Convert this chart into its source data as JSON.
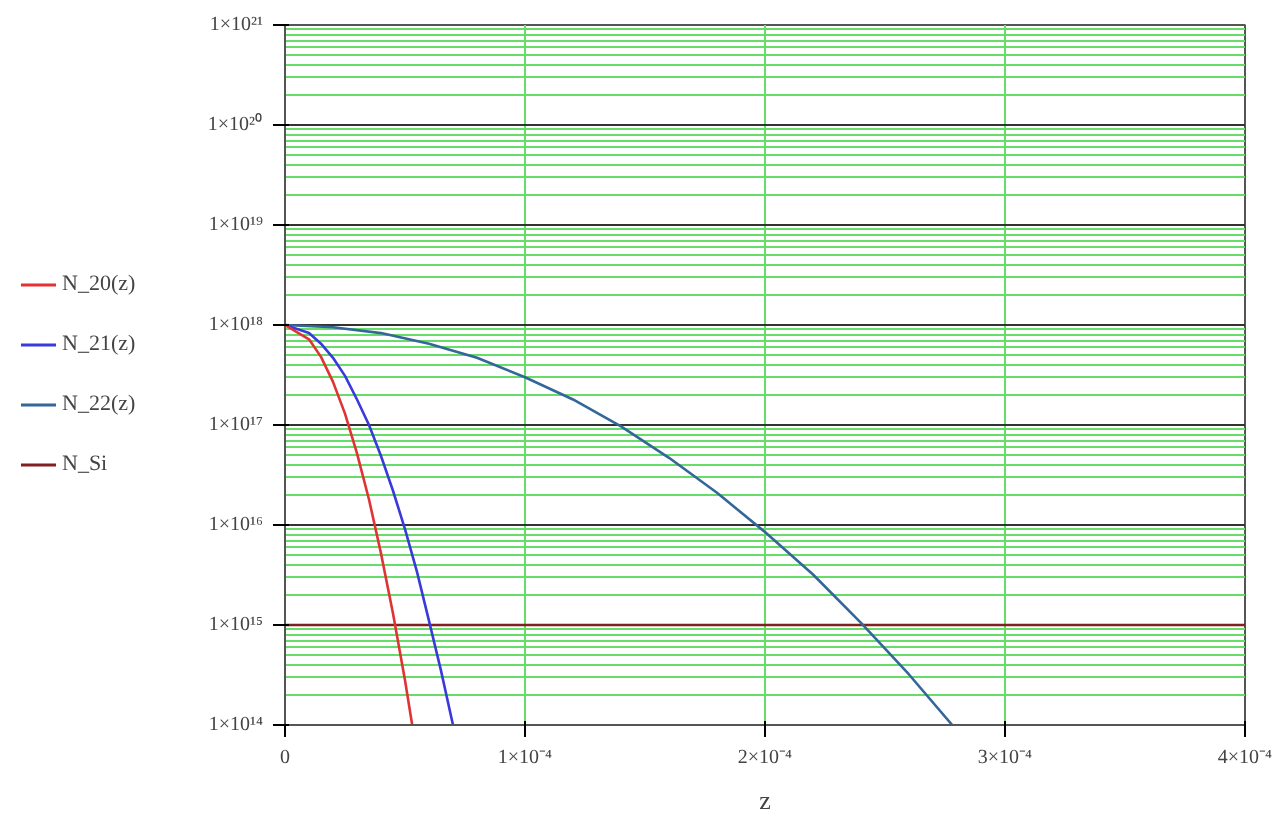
{
  "chart_data": {
    "type": "line",
    "xlabel": "z",
    "log": "y",
    "grid": true,
    "legend": "left",
    "line_style": "solid",
    "xlim": [
      0,
      0.0004
    ],
    "ylim": [
      100000000000000.0,
      1e+21
    ],
    "xticks": [
      0,
      {
        "value": 0.0001,
        "label": "1×10⁻⁴"
      },
      {
        "value": 0.0002,
        "label": "2×10⁻⁴"
      },
      {
        "value": 0.0003,
        "label": "3×10⁻⁴"
      },
      {
        "value": 0.0004,
        "label": "4×10⁻⁴"
      }
    ],
    "yticks": [
      {
        "value": 100000000000000.0,
        "label": "1×10¹⁴"
      },
      {
        "value": 1000000000000000.0,
        "label": "1×10¹⁵"
      },
      {
        "value": 1e+16,
        "label": "1×10¹⁶"
      },
      {
        "value": 1e+17,
        "label": "1×10¹⁷"
      },
      {
        "value": 1e+18,
        "label": "1×10¹⁸"
      },
      {
        "value": 1e+19,
        "label": "1×10¹⁹"
      },
      {
        "value": 1e+20,
        "label": "1×10²⁰"
      },
      {
        "value": 1e+21,
        "label": "1×10²¹"
      }
    ],
    "series": [
      {
        "name": "N_20(z)",
        "color": "#e03333",
        "x": [
          0,
          1e-05,
          1.5e-05,
          2e-05,
          2.5e-05,
          3e-05,
          3.5e-05,
          4e-05,
          4.5e-05,
          5e-05,
          5.3e-05
        ],
        "values": [
          1e+18,
          7.2e+17,
          4.8e+17,
          2.7e+17,
          1.3e+17,
          5.2e+16,
          1.8e+16,
          5200000000000000.0,
          1300000000000000.0,
          280000000000000.0,
          100000000000000.0
        ]
      },
      {
        "name": "N_21(z)",
        "color": "#3a3adc",
        "x": [
          0,
          1e-05,
          1.5e-05,
          2e-05,
          2.5e-05,
          3e-05,
          3.5e-05,
          4e-05,
          4.5e-05,
          5e-05,
          5.5e-05,
          6e-05,
          6.5e-05,
          7e-05
        ],
        "values": [
          1e+18,
          8.3e+17,
          6.5e+17,
          4.7e+17,
          3.1e+17,
          1.8e+17,
          1e+17,
          4.9e+16,
          2.2e+16,
          9100000000000000.0,
          3400000000000000.0,
          1100000000000000.0,
          350000000000000.0,
          100000000000000.0
        ]
      },
      {
        "name": "N_22(z)",
        "color": "#336699",
        "x": [
          0,
          2e-05,
          4e-05,
          6e-05,
          8e-05,
          0.0001,
          0.00012,
          0.00014,
          0.00016,
          0.00018,
          0.0002,
          0.00022,
          0.00024,
          0.00026,
          0.000278
        ],
        "values": [
          1e+18,
          9.5e+17,
          8.3e+17,
          6.5e+17,
          4.7e+17,
          3e+17,
          1.8e+17,
          9.7e+16,
          4.7e+16,
          2.1e+16,
          8500000000000000.0,
          3200000000000000.0,
          1050000000000000.0,
          320000000000000.0,
          100000000000000.0
        ]
      },
      {
        "name": "N_Si",
        "color": "#802020",
        "x": [
          0,
          0.0004
        ],
        "values": [
          1000000000000000.0,
          1000000000000000.0
        ]
      }
    ]
  }
}
